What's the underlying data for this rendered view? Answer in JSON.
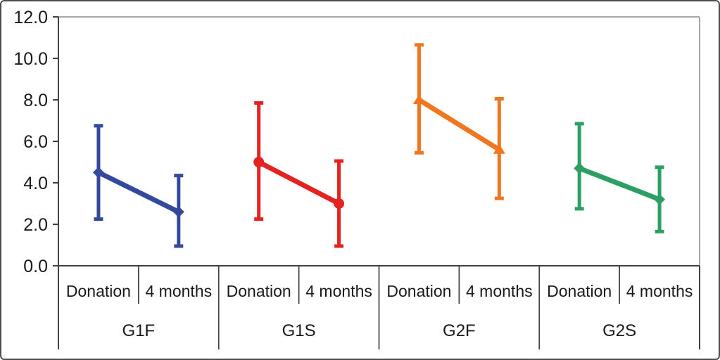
{
  "figure": {
    "background": "#ffffff",
    "frame_color": "#4d4d4d",
    "axis_color": "#404040",
    "plot_border_color": "#a6a6a6",
    "text_color": "#1a1a1a"
  },
  "chart_data": {
    "type": "line",
    "title": "",
    "xlabel": "",
    "ylabel": "",
    "ylim": [
      0,
      12
    ],
    "ytick_step": 2,
    "ytick_labels": [
      "0.0",
      "2.0",
      "4.0",
      "6.0",
      "8.0",
      "10.0",
      "12.0"
    ],
    "x_categories": [
      "Donation",
      "4 months"
    ],
    "grid": false,
    "legend": "none (group labels shown below axis)",
    "error_bars": true,
    "groups": [
      {
        "label": "G1F",
        "color": "#34499b",
        "marker": "diamond",
        "points": [
          {
            "x": "Donation",
            "value": 4.5,
            "err_low": 2.3,
            "err_high": 6.7
          },
          {
            "x": "4 months",
            "value": 2.6,
            "err_low": 1.0,
            "err_high": 4.3
          }
        ]
      },
      {
        "label": "G1S",
        "color": "#e42320",
        "marker": "circle",
        "points": [
          {
            "x": "Donation",
            "value": 5.0,
            "err_low": 2.3,
            "err_high": 7.8
          },
          {
            "x": "4 months",
            "value": 3.0,
            "err_low": 1.0,
            "err_high": 5.0
          }
        ]
      },
      {
        "label": "G2F",
        "color": "#f0761f",
        "marker": "triangle",
        "points": [
          {
            "x": "Donation",
            "value": 8.0,
            "err_low": 5.5,
            "err_high": 10.6
          },
          {
            "x": "4 months",
            "value": 5.6,
            "err_low": 3.3,
            "err_high": 8.0
          }
        ]
      },
      {
        "label": "G2S",
        "color": "#2d9f63",
        "marker": "diamond",
        "points": [
          {
            "x": "Donation",
            "value": 4.7,
            "err_low": 2.8,
            "err_high": 6.8
          },
          {
            "x": "4 months",
            "value": 3.2,
            "err_low": 1.7,
            "err_high": 4.7
          }
        ]
      }
    ]
  }
}
